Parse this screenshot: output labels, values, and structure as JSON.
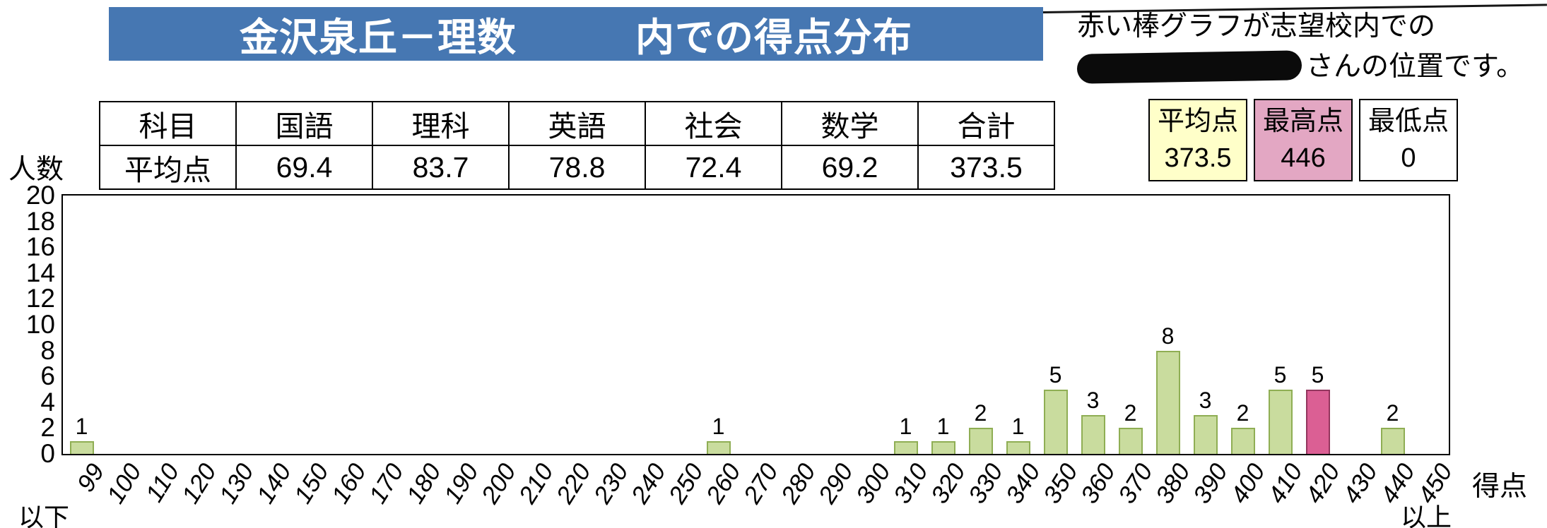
{
  "banner": {
    "title": "金沢泉丘－理数　　　内での得点分布"
  },
  "note": {
    "line1": "赤い棒グラフが志望校内での",
    "line2_suffix": "さんの位置です。"
  },
  "table": {
    "header": [
      "科目",
      "国語",
      "理科",
      "英語",
      "社会",
      "数学",
      "合計"
    ],
    "row_label": "平均点",
    "row_values": [
      "69.4",
      "83.7",
      "78.8",
      "72.4",
      "69.2",
      "373.5"
    ]
  },
  "stats": [
    {
      "key": "average",
      "label": "平均点",
      "value": "373.5",
      "bg": "#FFFFC9"
    },
    {
      "key": "highest",
      "label": "最高点",
      "value": "446",
      "bg": "#E3A7C3"
    },
    {
      "key": "lowest",
      "label": "最低点",
      "value": "0",
      "bg": "#FFFFFF"
    }
  ],
  "chart_data": {
    "type": "bar",
    "ylabel": "人数",
    "xlabel": "得点",
    "ylim": [
      0,
      20
    ],
    "yticks": [
      0,
      2,
      4,
      6,
      8,
      10,
      12,
      14,
      16,
      18,
      20
    ],
    "grid": false,
    "legend": false,
    "categories": [
      "99",
      "100",
      "110",
      "120",
      "130",
      "140",
      "150",
      "160",
      "170",
      "180",
      "190",
      "200",
      "210",
      "220",
      "230",
      "240",
      "250",
      "260",
      "270",
      "280",
      "290",
      "300",
      "310",
      "320",
      "330",
      "340",
      "350",
      "360",
      "370",
      "380",
      "390",
      "400",
      "410",
      "420",
      "430",
      "440",
      "450"
    ],
    "values": [
      1,
      0,
      0,
      0,
      0,
      0,
      0,
      0,
      0,
      0,
      0,
      0,
      0,
      0,
      0,
      0,
      0,
      1,
      0,
      0,
      0,
      0,
      1,
      1,
      2,
      1,
      5,
      3,
      2,
      8,
      3,
      2,
      5,
      5,
      0,
      2,
      0
    ],
    "first_category_suffix": "以下",
    "last_category_suffix": "以上",
    "highlight_index": 33,
    "bar_color": "#C9DC9E",
    "bar_border": "#8FAE54",
    "highlight_color": "#DB5F94",
    "highlight_border": "#93365E"
  },
  "colors": {
    "banner_bg": "#4677B2",
    "banner_text": "#FFFFFF"
  }
}
